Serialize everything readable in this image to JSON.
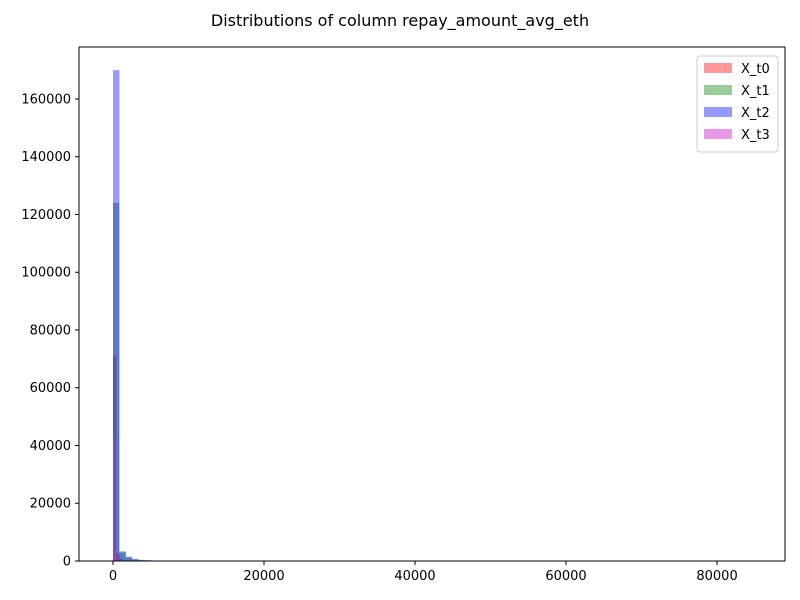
{
  "chart_data": {
    "type": "bar",
    "subtype": "overlaid-histogram",
    "title": "Distributions of column repay_amount_avg_eth",
    "xlabel": "",
    "ylabel": "",
    "xlim": [
      -4500,
      89000
    ],
    "ylim": [
      0,
      178000
    ],
    "x_ticks": [
      0,
      20000,
      40000,
      60000,
      80000
    ],
    "x_tick_labels": [
      "0",
      "20000",
      "40000",
      "60000",
      "80000"
    ],
    "y_ticks": [
      0,
      20000,
      40000,
      60000,
      80000,
      100000,
      120000,
      140000,
      160000
    ],
    "y_tick_labels": [
      "0",
      "20000",
      "40000",
      "60000",
      "80000",
      "100000",
      "120000",
      "140000",
      "160000"
    ],
    "grid": false,
    "legend": "top-right",
    "series": [
      {
        "name": "X_t0",
        "color": "#ff0000",
        "opacity": 0.4,
        "bins": [
          {
            "x0": 0,
            "x1": 430,
            "value": 71000
          },
          {
            "x0": 430,
            "x1": 860,
            "value": 2500
          },
          {
            "x0": 860,
            "x1": 1290,
            "value": 700
          },
          {
            "x0": 1290,
            "x1": 1720,
            "value": 250
          }
        ]
      },
      {
        "name": "X_t1",
        "color": "#008000",
        "opacity": 0.4,
        "bins": [
          {
            "x0": 0,
            "x1": 850,
            "value": 124000
          },
          {
            "x0": 850,
            "x1": 1700,
            "value": 3400
          },
          {
            "x0": 1700,
            "x1": 2550,
            "value": 1200
          },
          {
            "x0": 2550,
            "x1": 3400,
            "value": 500
          },
          {
            "x0": 3400,
            "x1": 4250,
            "value": 250
          }
        ]
      },
      {
        "name": "X_t2",
        "color": "#0000ff",
        "opacity": 0.4,
        "bins": [
          {
            "x0": 0,
            "x1": 850,
            "value": 170000
          },
          {
            "x0": 850,
            "x1": 1700,
            "value": 3000
          },
          {
            "x0": 1700,
            "x1": 2550,
            "value": 1500
          },
          {
            "x0": 2550,
            "x1": 3400,
            "value": 700
          },
          {
            "x0": 3400,
            "x1": 4250,
            "value": 400
          },
          {
            "x0": 4250,
            "x1": 5100,
            "value": 300
          }
        ]
      },
      {
        "name": "X_t3",
        "color": "#cc33cc",
        "opacity": 0.5,
        "bins": [
          {
            "x0": 0,
            "x1": 200,
            "value": 43000
          },
          {
            "x0": 200,
            "x1": 400,
            "value": 4000
          },
          {
            "x0": 400,
            "x1": 600,
            "value": 1500
          },
          {
            "x0": 600,
            "x1": 800,
            "value": 600
          }
        ]
      }
    ]
  }
}
